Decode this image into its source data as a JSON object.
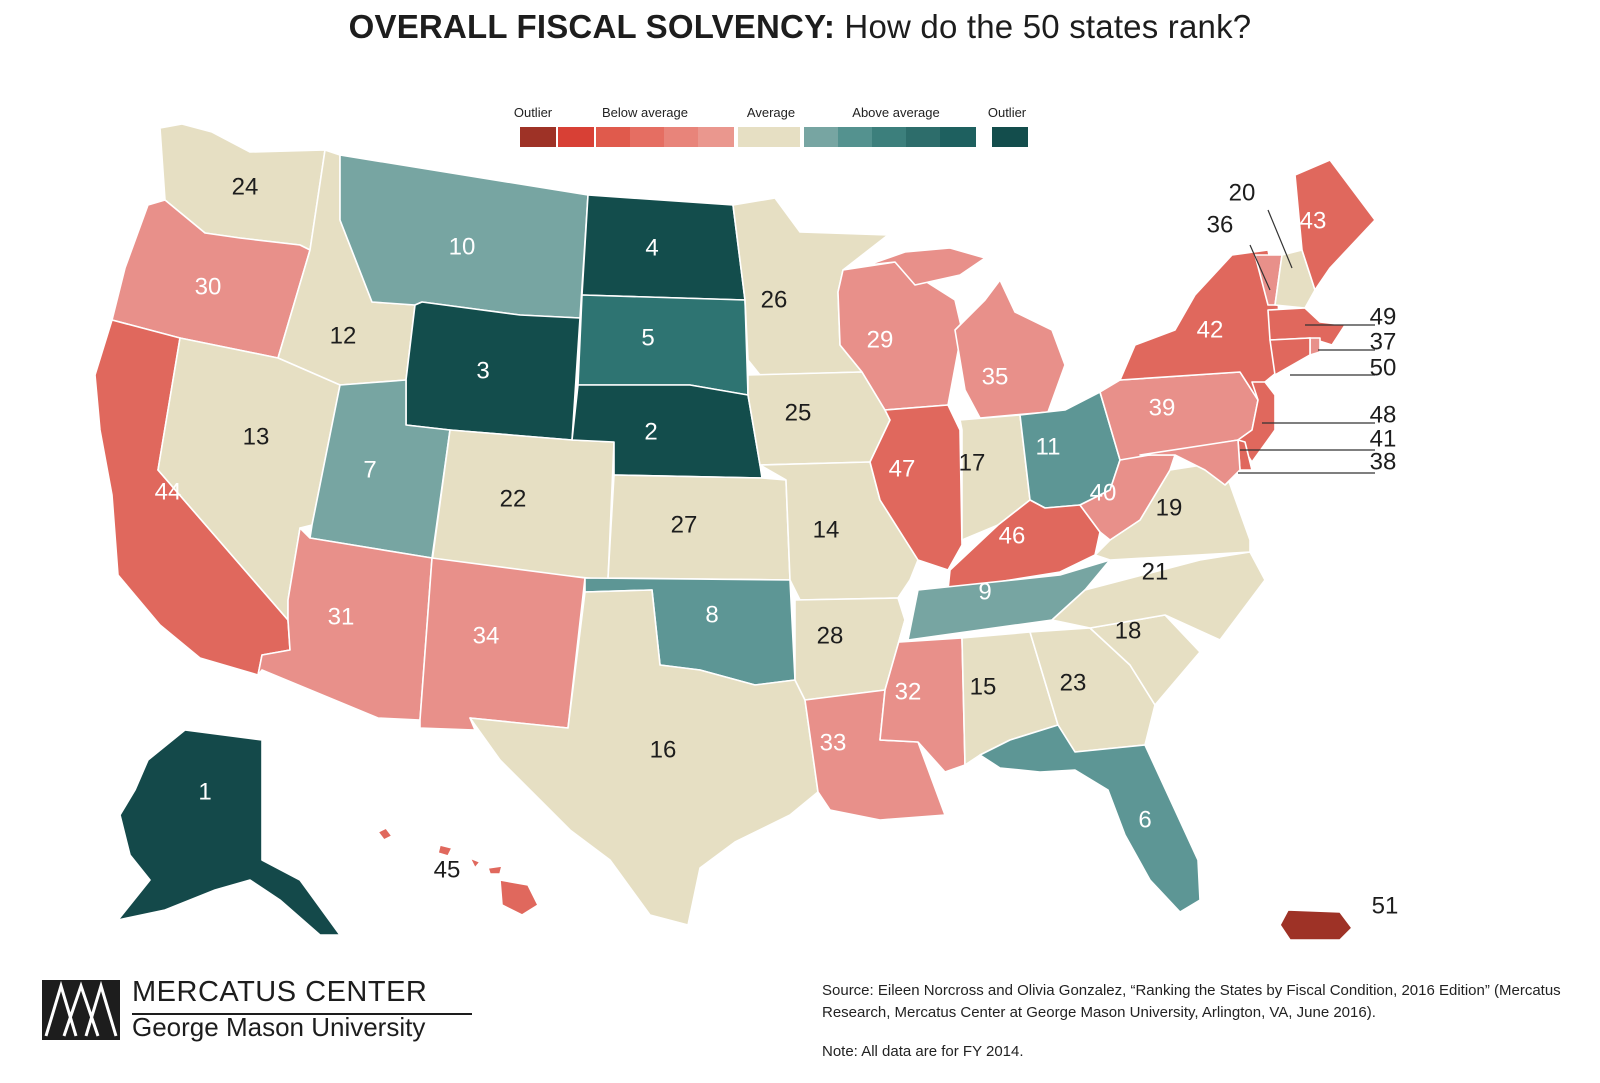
{
  "title": {
    "bold": "OVERALL FISCAL SOLVENCY:",
    "rest": " How do the 50 states rank?"
  },
  "legend": {
    "labels": [
      "Outlier",
      "Below average",
      "Average",
      "Above average",
      "Outlier"
    ],
    "colors": [
      "#9e3226",
      "#d84035",
      "#e05a4c",
      "#e56e62",
      "#e8847a",
      "#ea978e",
      "#e6dfc3",
      "#77a5a2",
      "#54928f",
      "#3c7f7c",
      "#2d6d6b",
      "#1e605f",
      "#134d4c"
    ]
  },
  "palette": {
    "outlier_low": "#9e3226",
    "below_strong": "#e0685d",
    "below_mild": "#e8908a",
    "average": "#e6dfc3",
    "above_mild": "#77a5a2",
    "above_mid": "#5d9695",
    "above_strong": "#2e7472",
    "outlier_high": "#134d4c",
    "ranked_1": "#14494a"
  },
  "states": [
    {
      "code": "WA",
      "rank": "24"
    },
    {
      "code": "OR",
      "rank": "30"
    },
    {
      "code": "CA",
      "rank": "44"
    },
    {
      "code": "ID",
      "rank": "12"
    },
    {
      "code": "NV",
      "rank": "13"
    },
    {
      "code": "MT",
      "rank": "10"
    },
    {
      "code": "WY",
      "rank": "3"
    },
    {
      "code": "UT",
      "rank": "7"
    },
    {
      "code": "CO",
      "rank": "22"
    },
    {
      "code": "AZ",
      "rank": "31"
    },
    {
      "code": "NM",
      "rank": "34"
    },
    {
      "code": "ND",
      "rank": "4"
    },
    {
      "code": "SD",
      "rank": "5"
    },
    {
      "code": "NE",
      "rank": "2"
    },
    {
      "code": "KS",
      "rank": "27"
    },
    {
      "code": "OK",
      "rank": "8"
    },
    {
      "code": "TX",
      "rank": "16"
    },
    {
      "code": "MN",
      "rank": "26"
    },
    {
      "code": "IA",
      "rank": "25"
    },
    {
      "code": "MO",
      "rank": "14"
    },
    {
      "code": "AR",
      "rank": "28"
    },
    {
      "code": "LA",
      "rank": "33"
    },
    {
      "code": "WI",
      "rank": "29"
    },
    {
      "code": "IL",
      "rank": "47"
    },
    {
      "code": "MI",
      "rank": "35"
    },
    {
      "code": "IN",
      "rank": "17"
    },
    {
      "code": "OH",
      "rank": "11"
    },
    {
      "code": "KY",
      "rank": "46"
    },
    {
      "code": "TN",
      "rank": "9"
    },
    {
      "code": "MS",
      "rank": "32"
    },
    {
      "code": "AL",
      "rank": "15"
    },
    {
      "code": "GA",
      "rank": "23"
    },
    {
      "code": "FL",
      "rank": "6"
    },
    {
      "code": "SC",
      "rank": "18"
    },
    {
      "code": "NC",
      "rank": "21"
    },
    {
      "code": "VA",
      "rank": "19"
    },
    {
      "code": "WV",
      "rank": "40"
    },
    {
      "code": "PA",
      "rank": "39"
    },
    {
      "code": "NY",
      "rank": "42"
    },
    {
      "code": "VT",
      "rank": "36"
    },
    {
      "code": "NH",
      "rank": "20"
    },
    {
      "code": "ME",
      "rank": "43"
    },
    {
      "code": "MA",
      "rank": "49"
    },
    {
      "code": "RI",
      "rank": "37"
    },
    {
      "code": "CT",
      "rank": "50"
    },
    {
      "code": "NJ",
      "rank": "48"
    },
    {
      "code": "DE",
      "rank": "41"
    },
    {
      "code": "MD",
      "rank": "38"
    },
    {
      "code": "AK",
      "rank": "1"
    },
    {
      "code": "HI",
      "rank": "45"
    },
    {
      "code": "PR",
      "rank": "51"
    }
  ],
  "source": "Source: Eileen Norcross and Olivia Gonzalez, “Ranking the States by Fiscal Condition, 2016 Edition” (Mercatus Research, Mercatus Center at George Mason University, Arlington, VA, June 2016).",
  "note": "Note: All data are for FY 2014.",
  "logo": {
    "name": "MERCATUS CENTER",
    "university": "George Mason University"
  }
}
